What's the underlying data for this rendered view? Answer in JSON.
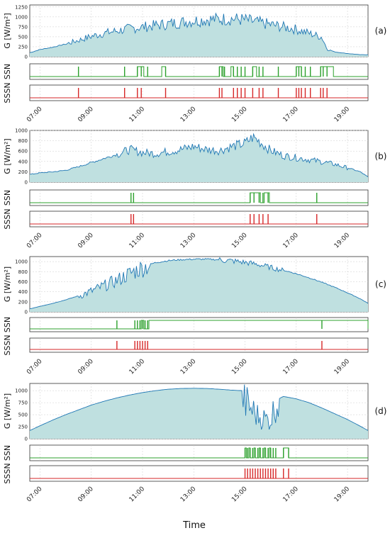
{
  "figure": {
    "xlabel": "Time",
    "xticks": [
      "07:00",
      "09:00",
      "11:00",
      "13:00",
      "15:00",
      "17:00",
      "19:00"
    ],
    "xtick_hours": [
      7,
      9,
      11,
      13,
      15,
      17,
      19
    ],
    "xrange_hours": [
      6.6,
      19.8
    ],
    "y_labels": {
      "g": "G [W/m²]",
      "ssn": "SSN",
      "sssn": "SSSN"
    },
    "colors": {
      "area_fill": "#bfe0e0",
      "line": "#1f77b4",
      "ssn": "#2ca02c",
      "sssn": "#d62728",
      "grid": "#cccccc"
    }
  },
  "chart_data": [
    {
      "panel": "(a)",
      "type": "area",
      "ylabel": "G [W/m²]",
      "ylim": [
        0,
        1300
      ],
      "yticks": [
        0,
        250,
        500,
        750,
        1000,
        1250
      ],
      "x": [
        6.6,
        7.0,
        7.5,
        8.0,
        8.5,
        9.0,
        9.5,
        10.0,
        10.5,
        11.0,
        11.5,
        12.0,
        12.5,
        13.0,
        13.5,
        14.0,
        14.5,
        15.0,
        15.5,
        16.0,
        16.5,
        17.0,
        17.5,
        18.0,
        18.2,
        18.5,
        19.0,
        19.5,
        19.8
      ],
      "y": [
        100,
        180,
        240,
        320,
        420,
        520,
        600,
        660,
        720,
        760,
        800,
        840,
        880,
        920,
        950,
        960,
        970,
        940,
        880,
        820,
        760,
        700,
        600,
        500,
        200,
        120,
        80,
        50,
        50
      ],
      "ssn_events": [
        8.5,
        10.3,
        10.8,
        10.95,
        11.2,
        11.9,
        14.0,
        14.1,
        14.2,
        14.55,
        14.7,
        14.85,
        15.0,
        15.3,
        15.55,
        15.7,
        16.3,
        17.0,
        17.1,
        17.2,
        17.35,
        17.55,
        17.95,
        18.05,
        18.2
      ],
      "ssn_high": [
        [
          10.8,
          11.05
        ],
        [
          11.75,
          11.9
        ],
        [
          14.0,
          14.15
        ],
        [
          14.45,
          14.55
        ],
        [
          15.3,
          15.45
        ],
        [
          17.0,
          17.2
        ],
        [
          17.95,
          18.45
        ]
      ],
      "sssn_events": [
        8.5,
        10.3,
        10.8,
        10.95,
        11.9,
        14.0,
        14.1,
        14.55,
        14.7,
        14.85,
        15.0,
        15.3,
        15.55,
        15.7,
        16.3,
        17.0,
        17.1,
        17.2,
        17.35,
        17.55,
        17.95,
        18.05,
        18.2
      ]
    },
    {
      "panel": "(b)",
      "type": "area",
      "ylabel": "G [W/m²]",
      "ylim": [
        0,
        1000
      ],
      "yticks": [
        0,
        200,
        400,
        600,
        800,
        1000
      ],
      "x": [
        6.6,
        7.0,
        7.5,
        8.0,
        8.5,
        9.0,
        9.5,
        10.0,
        10.5,
        11.0,
        11.5,
        12.0,
        12.5,
        13.0,
        13.5,
        14.0,
        14.5,
        15.0,
        15.3,
        15.5,
        16.0,
        16.5,
        17.0,
        17.5,
        18.0,
        18.5,
        19.0,
        19.5,
        19.8
      ],
      "y": [
        150,
        180,
        200,
        230,
        300,
        380,
        460,
        540,
        640,
        580,
        560,
        600,
        640,
        700,
        640,
        620,
        700,
        760,
        880,
        820,
        620,
        520,
        480,
        440,
        400,
        350,
        280,
        200,
        100
      ],
      "ssn_events": [
        10.55,
        10.65,
        15.2,
        15.35,
        15.55,
        15.7,
        15.9,
        17.8
      ],
      "ssn_high": [
        [
          15.2,
          15.6
        ],
        [
          15.75,
          15.95
        ]
      ],
      "sssn_events": [
        10.55,
        10.65,
        15.2,
        15.35,
        15.55,
        15.7,
        15.9,
        17.8
      ]
    },
    {
      "panel": "(c)",
      "type": "area",
      "ylabel": "G [W/m²]",
      "ylim": [
        0,
        1100
      ],
      "yticks": [
        0,
        200,
        400,
        600,
        800,
        1000
      ],
      "x": [
        6.6,
        7.0,
        7.5,
        8.0,
        8.5,
        9.0,
        9.5,
        10.0,
        10.5,
        11.0,
        11.5,
        12.0,
        12.5,
        13.0,
        13.5,
        14.0,
        14.5,
        15.0,
        15.5,
        16.0,
        16.5,
        17.0,
        17.5,
        18.0,
        18.5,
        19.0,
        19.5,
        19.8
      ],
      "y": [
        60,
        110,
        170,
        240,
        320,
        420,
        530,
        640,
        780,
        900,
        980,
        1020,
        1040,
        1050,
        1050,
        1040,
        1020,
        990,
        950,
        890,
        830,
        760,
        680,
        590,
        490,
        380,
        260,
        170
      ],
      "ssn_events": [
        10.0,
        10.7,
        10.8,
        10.9,
        11.0,
        11.1,
        11.2,
        18.0
      ],
      "ssn_high": [
        [
          10.95,
          11.05
        ],
        [
          11.25,
          19.8
        ]
      ],
      "sssn_events": [
        10.0,
        10.7,
        10.8,
        10.9,
        11.0,
        11.1,
        11.2,
        18.0
      ]
    },
    {
      "panel": "(d)",
      "type": "area",
      "ylabel": "G [W/m²]",
      "ylim": [
        0,
        1150
      ],
      "yticks": [
        0,
        250,
        500,
        750,
        1000
      ],
      "x": [
        6.6,
        7.0,
        7.5,
        8.0,
        8.5,
        9.0,
        9.5,
        10.0,
        10.5,
        11.0,
        11.5,
        12.0,
        12.5,
        13.0,
        13.5,
        14.0,
        14.5,
        14.9,
        15.0,
        15.5,
        16.0,
        16.2,
        16.5,
        17.0,
        17.5,
        18.0,
        18.5,
        19.0,
        19.5,
        19.8
      ],
      "y": [
        170,
        270,
        390,
        500,
        600,
        700,
        780,
        850,
        910,
        960,
        1000,
        1030,
        1045,
        1050,
        1045,
        1030,
        1010,
        1000,
        800,
        500,
        400,
        800,
        880,
        830,
        750,
        640,
        520,
        400,
        260,
        170
      ],
      "ssn_events": [
        15.0,
        15.1,
        15.2,
        15.3,
        15.4,
        15.5,
        15.6,
        15.7,
        15.8,
        15.9,
        16.0,
        16.1,
        16.2,
        16.5,
        16.7
      ],
      "ssn_high": [
        [
          15.0,
          15.05
        ],
        [
          15.15,
          15.2
        ],
        [
          15.35,
          15.4
        ],
        [
          15.55,
          15.6
        ],
        [
          15.75,
          15.8
        ],
        [
          15.95,
          16.0
        ],
        [
          16.5,
          16.7
        ]
      ],
      "sssn_events": [
        15.0,
        15.1,
        15.2,
        15.3,
        15.4,
        15.5,
        15.6,
        15.7,
        15.8,
        15.9,
        16.0,
        16.1,
        16.2,
        16.5,
        16.7
      ]
    }
  ]
}
